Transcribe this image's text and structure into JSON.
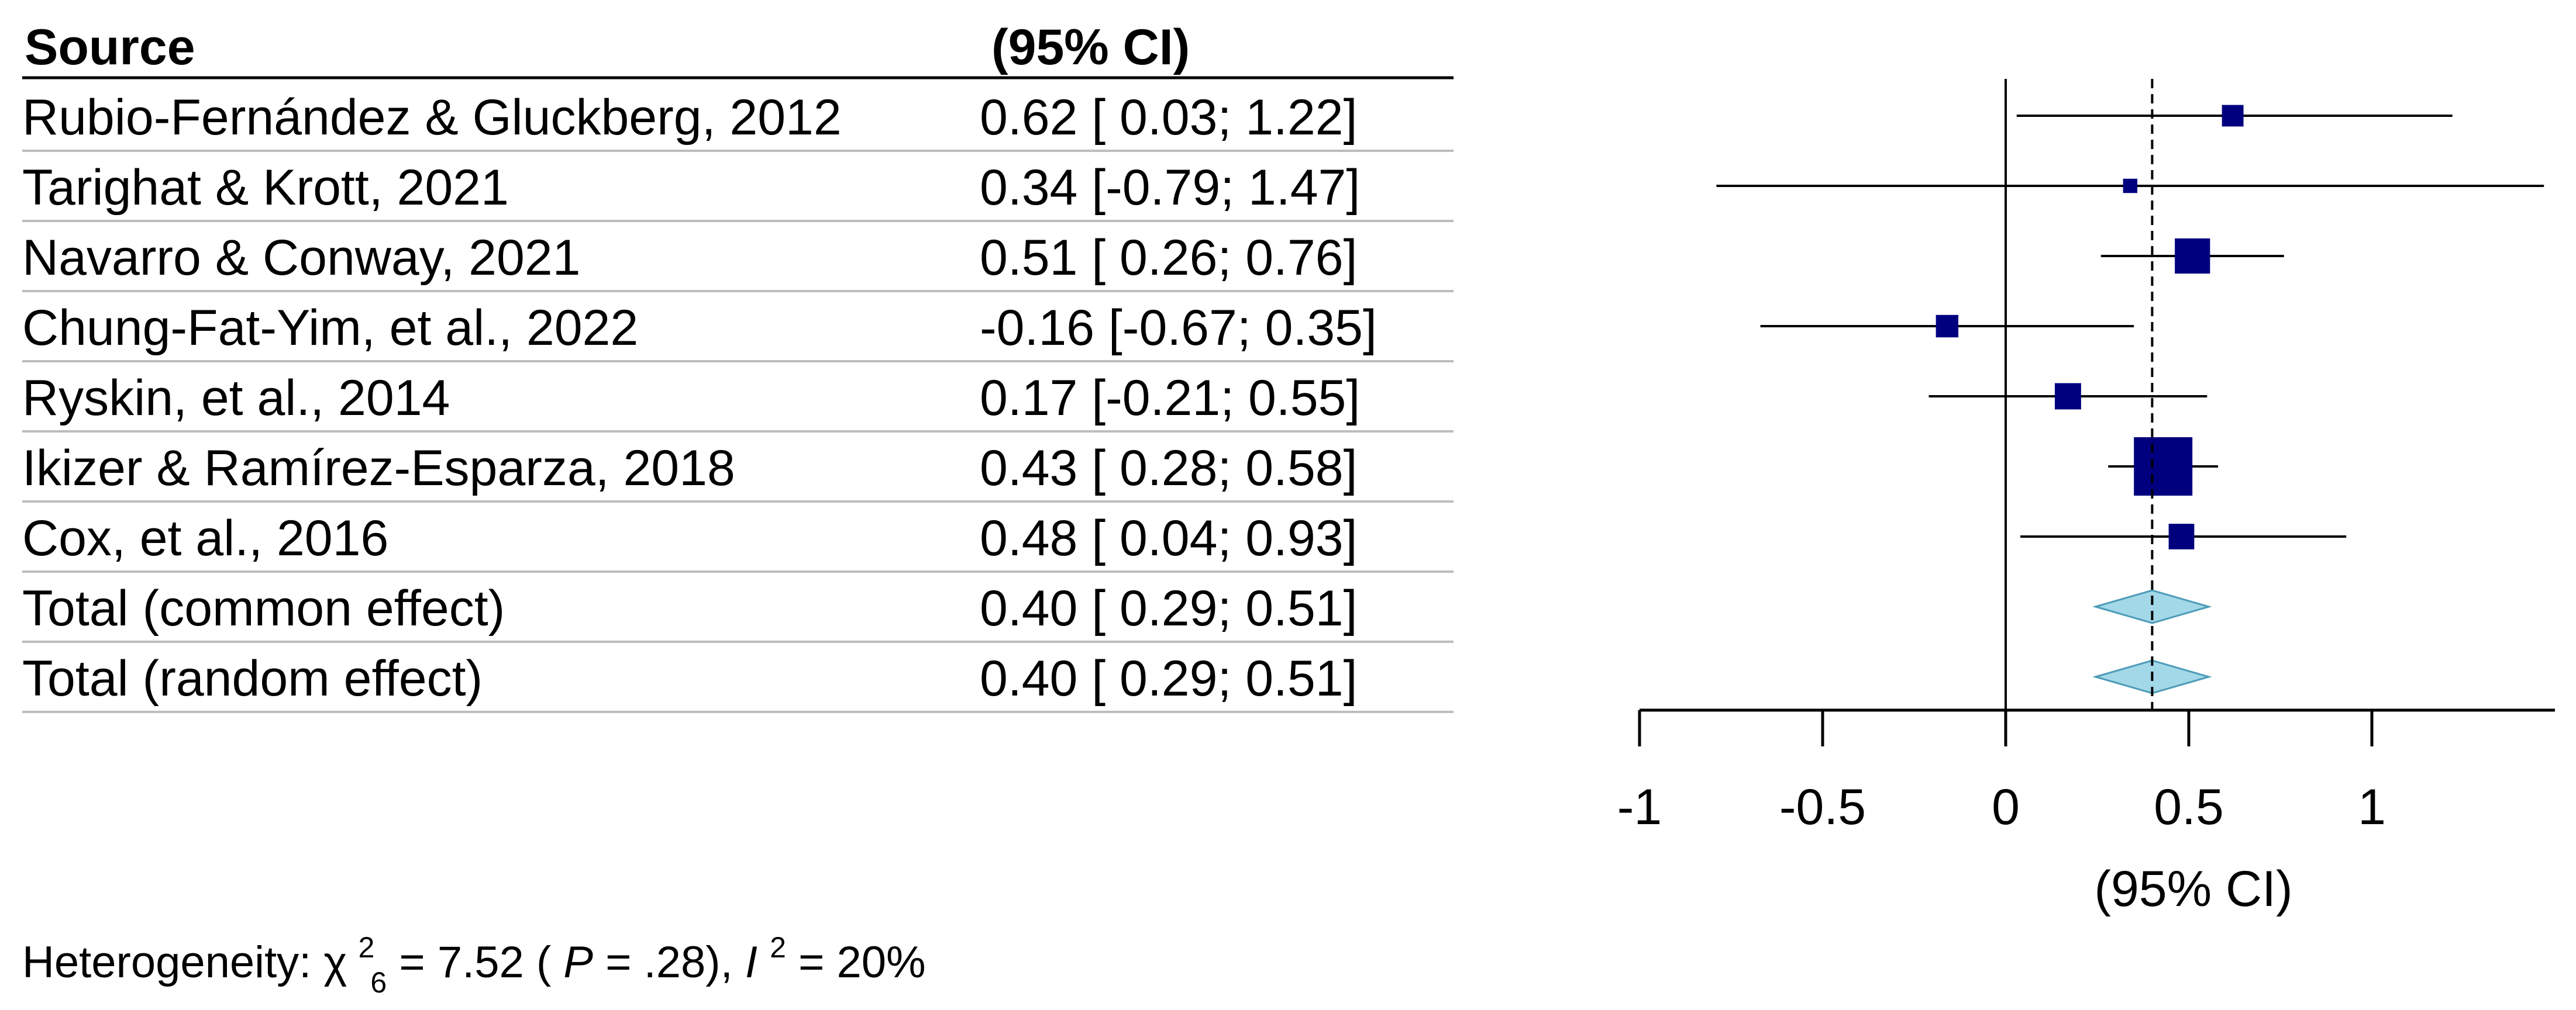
{
  "chart_data": {
    "type": "forest",
    "columns": {
      "source_header": "Source",
      "ci_header": "(95% CI)"
    },
    "studies": [
      {
        "source": "Rubio-Fernández & Gluckberg, 2012",
        "ci_text": "0.62 [ 0.03; 1.22]",
        "estimate": 0.62,
        "lower": 0.03,
        "upper": 1.22,
        "weight": 8
      },
      {
        "source": "Tarighat & Krott, 2021",
        "ci_text": "0.34 [-0.79; 1.47]",
        "estimate": 0.34,
        "lower": -0.79,
        "upper": 1.47,
        "weight": 2
      },
      {
        "source": "Navarro & Conway, 2021",
        "ci_text": "0.51 [ 0.26; 0.76]",
        "estimate": 0.51,
        "lower": 0.26,
        "upper": 0.76,
        "weight": 30
      },
      {
        "source": "Chung-Fat-Yim, et al., 2022",
        "ci_text": "-0.16 [-0.67; 0.35]",
        "estimate": -0.16,
        "lower": -0.67,
        "upper": 0.35,
        "weight": 9
      },
      {
        "source": "Ryskin, et al., 2014",
        "ci_text": "0.17 [-0.21; 0.55]",
        "estimate": 0.17,
        "lower": -0.21,
        "upper": 0.55,
        "weight": 14
      },
      {
        "source": "Ikizer & Ramírez-Esparza, 2018",
        "ci_text": "0.43 [ 0.28; 0.58]",
        "estimate": 0.43,
        "lower": 0.28,
        "upper": 0.58,
        "weight": 100
      },
      {
        "source": "Cox, et al., 2016",
        "ci_text": "0.48 [ 0.04; 0.93]",
        "estimate": 0.48,
        "lower": 0.04,
        "upper": 0.93,
        "weight": 13
      }
    ],
    "totals": [
      {
        "source": "Total (common effect)",
        "ci_text": "0.40 [ 0.29; 0.51]",
        "estimate": 0.4,
        "lower": 0.29,
        "upper": 0.51
      },
      {
        "source": "Total (random effect)",
        "ci_text": "0.40 [ 0.29; 0.51]",
        "estimate": 0.4,
        "lower": 0.29,
        "upper": 0.51
      }
    ],
    "x_axis": {
      "xlim": [
        -1,
        1.5
      ],
      "ticks": [
        -1,
        -0.5,
        0,
        0.5,
        1
      ],
      "tick_labels": [
        "-1",
        "-0.5",
        "0",
        "0.5",
        "1"
      ],
      "label": "(95% CI)"
    },
    "reference_line": 0,
    "pooled_line": 0.4,
    "heterogeneity": {
      "prefix": "Heterogeneity: ",
      "chi": "χ",
      "chi_sup": "2",
      "chi_sub": "6",
      "after_chi": " = 7.52 (",
      "p_symbol": "P",
      "p_value": " = .28), ",
      "i_symbol": "I",
      "i_sup": "2",
      "i_value": " = 20%"
    },
    "colors": {
      "square": "#00007f",
      "diamond": "#a3d8e8",
      "diamond_stroke": "#4d9bb8",
      "line": "#000000",
      "rule": "#bdbdbd"
    }
  }
}
